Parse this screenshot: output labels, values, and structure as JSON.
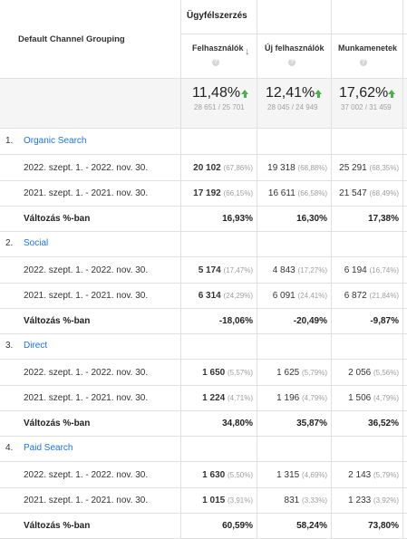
{
  "header": {
    "group_title": "Ügyfélszerzés",
    "grouping_label": "Default Channel Grouping",
    "columns": [
      "Felhasználók",
      "Új felhasználók",
      "Munkamenetek"
    ],
    "help_glyph": "?"
  },
  "summary": [
    {
      "pct": "11,48%",
      "detail": "28 651 / 25 701"
    },
    {
      "pct": "12,41%",
      "detail": "28 045 / 24 949"
    },
    {
      "pct": "17,62%",
      "detail": "37 002 / 31 459"
    }
  ],
  "groups": [
    {
      "num": "1.",
      "name": "Organic Search",
      "rows": [
        {
          "label": "2022. szept. 1. - 2022. nov. 30.",
          "cells": [
            {
              "v": "20 102",
              "p": "(67,86%)"
            },
            {
              "v": "19 318",
              "p": "(68,88%)"
            },
            {
              "v": "25 291",
              "p": "(68,35%)"
            }
          ]
        },
        {
          "label": "2021. szept. 1. - 2021. nov. 30.",
          "cells": [
            {
              "v": "17 192",
              "p": "(66,15%)"
            },
            {
              "v": "16 611",
              "p": "(66,58%)"
            },
            {
              "v": "21 547",
              "p": "(68,49%)"
            }
          ]
        }
      ],
      "change_label": "Változás %-ban",
      "change": [
        "16,93%",
        "16,30%",
        "17,38%"
      ]
    },
    {
      "num": "2.",
      "name": "Social",
      "rows": [
        {
          "label": "2022. szept. 1. - 2022. nov. 30.",
          "cells": [
            {
              "v": "5 174",
              "p": "(17,47%)"
            },
            {
              "v": "4 843",
              "p": "(17,27%)"
            },
            {
              "v": "6 194",
              "p": "(16,74%)"
            }
          ]
        },
        {
          "label": "2021. szept. 1. - 2021. nov. 30.",
          "cells": [
            {
              "v": "6 314",
              "p": "(24,29%)"
            },
            {
              "v": "6 091",
              "p": "(24,41%)"
            },
            {
              "v": "6 872",
              "p": "(21,84%)"
            }
          ]
        }
      ],
      "change_label": "Változás %-ban",
      "change": [
        "-18,06%",
        "-20,49%",
        "-9,87%"
      ]
    },
    {
      "num": "3.",
      "name": "Direct",
      "rows": [
        {
          "label": "2022. szept. 1. - 2022. nov. 30.",
          "cells": [
            {
              "v": "1 650",
              "p": "(5,57%)"
            },
            {
              "v": "1 625",
              "p": "(5,79%)"
            },
            {
              "v": "2 056",
              "p": "(5,56%)"
            }
          ]
        },
        {
          "label": "2021. szept. 1. - 2021. nov. 30.",
          "cells": [
            {
              "v": "1 224",
              "p": "(4,71%)"
            },
            {
              "v": "1 196",
              "p": "(4,79%)"
            },
            {
              "v": "1 506",
              "p": "(4,79%)"
            }
          ]
        }
      ],
      "change_label": "Változás %-ban",
      "change": [
        "34,80%",
        "35,87%",
        "36,52%"
      ]
    },
    {
      "num": "4.",
      "name": "Paid Search",
      "rows": [
        {
          "label": "2022. szept. 1. - 2022. nov. 30.",
          "cells": [
            {
              "v": "1 630",
              "p": "(5,50%)"
            },
            {
              "v": "1 315",
              "p": "(4,69%)"
            },
            {
              "v": "2 143",
              "p": "(5,79%)"
            }
          ]
        },
        {
          "label": "2021. szept. 1. - 2021. nov. 30.",
          "cells": [
            {
              "v": "1 015",
              "p": "(3,91%)"
            },
            {
              "v": "831",
              "p": "(3,33%)"
            },
            {
              "v": "1 233",
              "p": "(3,92%)"
            }
          ]
        }
      ],
      "change_label": "Változás %-ban",
      "change": [
        "60,59%",
        "58,24%",
        "73,80%"
      ]
    }
  ],
  "colors": {
    "accent_link": "#1a73e8",
    "up_arrow": "#4caf50",
    "grid": "#e0e0e0"
  }
}
